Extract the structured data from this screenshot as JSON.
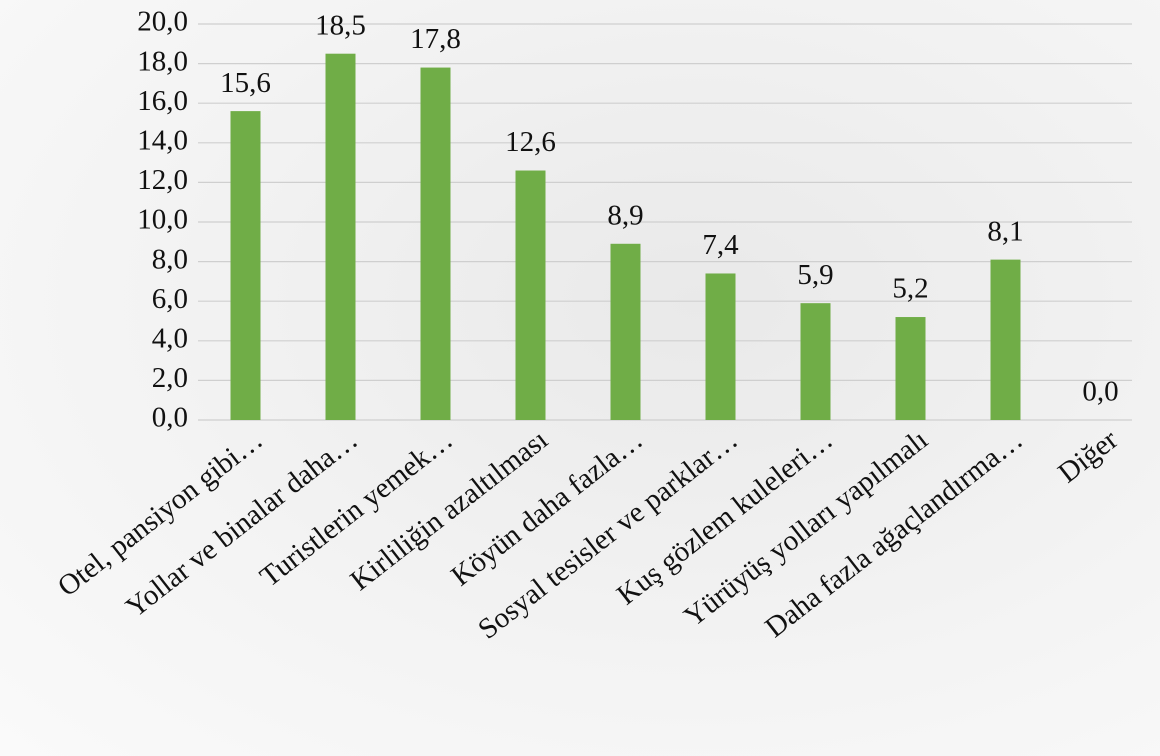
{
  "chart_data": {
    "type": "bar",
    "categories": [
      "Otel, pansiyon gibi…",
      "Yollar ve binalar daha…",
      "Turistlerin yemek…",
      "Kirliliğin azaltılması",
      "Köyün daha fazla…",
      "Sosyal tesisler ve parklar…",
      "Kuş gözlem kuleleri…",
      "Yürüyüş yolları yapılmalı",
      "Daha fazla ağaçlandırma…",
      "Diğer"
    ],
    "values": [
      15.6,
      18.5,
      17.8,
      12.6,
      8.9,
      7.4,
      5.9,
      5.2,
      8.1,
      0.0
    ],
    "value_labels": [
      "15,6",
      "18,5",
      "17,8",
      "12,6",
      "8,9",
      "7,4",
      "5,9",
      "5,2",
      "8,1",
      "0,0"
    ],
    "color": "#70ad47",
    "ylim": [
      0,
      20
    ],
    "yticks": [
      {
        "value": 0,
        "label": "0,0"
      },
      {
        "value": 2,
        "label": "2,0"
      },
      {
        "value": 4,
        "label": "4,0"
      },
      {
        "value": 6,
        "label": "6,0"
      },
      {
        "value": 8,
        "label": "8,0"
      },
      {
        "value": 10,
        "label": "10,0"
      },
      {
        "value": 12,
        "label": "12,0"
      },
      {
        "value": 14,
        "label": "14,0"
      },
      {
        "value": 16,
        "label": "16,0"
      },
      {
        "value": 18,
        "label": "18,0"
      },
      {
        "value": 20,
        "label": "20,0"
      }
    ],
    "grid": true
  }
}
